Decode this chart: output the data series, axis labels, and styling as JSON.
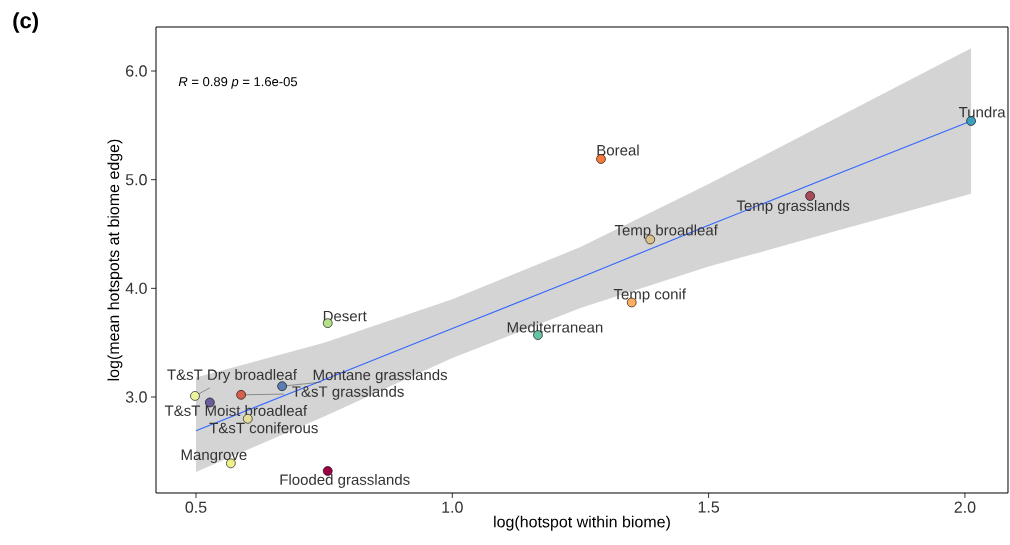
{
  "chart_data": {
    "type": "scatter",
    "xlabel": "log(hotspot within biome)",
    "ylabel": "log(mean hotspots at biome edge)",
    "xlim": [
      0.422,
      2.084
    ],
    "ylim": [
      2.117,
      6.405
    ],
    "xticks": [
      0.5,
      {
        "value": 1.0,
        "label": "1.0"
      },
      1.5,
      {
        "value": 2.0,
        "label": "2.0"
      }
    ],
    "yticks": [
      {
        "value": 3,
        "label": "3.0"
      },
      {
        "value": 4,
        "label": "4.0"
      },
      {
        "value": 5,
        "label": "5.0"
      },
      {
        "value": 6,
        "label": "6.0"
      }
    ],
    "series": [
      {
        "type": "line",
        "marker": "none",
        "color": "#3366ff",
        "x": [
          0.5,
          0.75,
          1.0,
          1.25,
          1.5,
          1.75,
          2.012
        ],
        "values": [
          2.69,
          3.16,
          3.63,
          4.1,
          4.58,
          5.05,
          5.54
        ],
        "lower": [
          2.31,
          2.82,
          3.36,
          3.82,
          4.2,
          4.53,
          4.87
        ],
        "upper": [
          3.18,
          3.5,
          3.9,
          4.38,
          4.96,
          5.57,
          6.21
        ]
      },
      {
        "marker": "circle",
        "x": [
          2.012,
          1.29,
          1.698,
          1.386,
          1.35,
          1.167,
          0.757,
          0.668,
          0.588,
          0.498,
          0.527,
          0.601,
          0.568,
          0.757
        ],
        "values": [
          5.54,
          5.19,
          4.85,
          4.45,
          3.87,
          3.57,
          3.68,
          3.1,
          3.02,
          3.01,
          2.95,
          2.8,
          2.39,
          2.32
        ],
        "colors": [
          "#3d9fbf",
          "#f47a3c",
          "#a84a5a",
          "#d9c08c",
          "#fdae61",
          "#66c2a5",
          "#b5e08a",
          "#5b7fb0",
          "#d5604e",
          "#ecf3a0",
          "#6a5d9a",
          "#e6dd9a",
          "#eef08a",
          "#9e0142"
        ]
      }
    ],
    "annotations": [
      "(c)",
      "*R* = 0.89  *p* = 1.6e-05",
      {
        "text": "Tundra",
        "x": 2.012,
        "y": 5.54
      },
      {
        "text": "Boreal",
        "x": 1.29,
        "y": 5.19
      },
      {
        "text": "Temp grasslands",
        "x": 1.698,
        "y": 4.85
      },
      {
        "text": "Temp broadleaf",
        "x": 1.386,
        "y": 4.45
      },
      {
        "text": "Temp conif",
        "x": 1.35,
        "y": 3.87
      },
      {
        "text": "Mediterranean",
        "x": 1.167,
        "y": 3.57
      },
      {
        "text": "Desert",
        "x": 0.757,
        "y": 3.68
      },
      {
        "text": "Montane grasslands",
        "x": 0.668,
        "y": 3.1
      },
      {
        "text": "T&sT grasslands",
        "x": 0.588,
        "y": 3.02
      },
      {
        "text": "T&sT Dry broadleaf",
        "x": 0.498,
        "y": 3.01
      },
      {
        "text": "T&sT Moist broadleaf",
        "x": 0.527,
        "y": 2.95
      },
      {
        "text": "T&sT coniferous",
        "x": 0.601,
        "y": 2.8
      },
      {
        "text": "Mangrove",
        "x": 0.568,
        "y": 2.39
      },
      {
        "text": "Flooded grasslands",
        "x": 0.757,
        "y": 2.32
      }
    ]
  }
}
